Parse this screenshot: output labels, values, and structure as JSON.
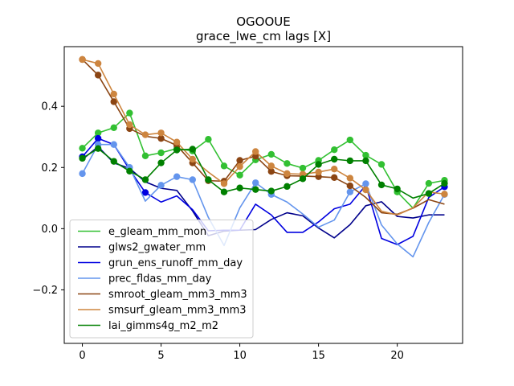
{
  "chart_data": {
    "type": "line",
    "title": "OGOOUE",
    "subtitle": "grace_lwe_cm lags [X]",
    "xlabel": "",
    "ylabel": "",
    "xlim": [
      -1.15,
      24.15
    ],
    "ylim": [
      -0.375,
      0.595
    ],
    "xticks": [
      0,
      5,
      10,
      15,
      20
    ],
    "yticks": [
      -0.2,
      0.0,
      0.2,
      0.4
    ],
    "ytick_labels": [
      "−0.2",
      "0.0",
      "0.2",
      "0.4"
    ],
    "grid": false,
    "legend_position": "lower-left",
    "x": [
      0,
      1,
      2,
      3,
      4,
      5,
      6,
      7,
      8,
      9,
      10,
      11,
      12,
      13,
      14,
      15,
      16,
      17,
      18,
      19,
      20,
      21,
      22,
      23
    ],
    "series": [
      {
        "name": "e_gleam_mm_mon",
        "color": "#32c032",
        "values": [
          0.263,
          0.313,
          0.33,
          0.378,
          0.238,
          0.248,
          0.262,
          0.254,
          0.292,
          0.205,
          0.175,
          0.225,
          0.243,
          0.213,
          0.198,
          0.223,
          0.258,
          0.29,
          0.24,
          0.21,
          0.12,
          0.067,
          0.148,
          0.158
        ],
        "markers": [
          0,
          1,
          2,
          3,
          4,
          5,
          6,
          7,
          8,
          9,
          10,
          11,
          12,
          13,
          14,
          15,
          16,
          17,
          18,
          19,
          20,
          22,
          23
        ]
      },
      {
        "name": "glws2_gwater_mm",
        "color": "#00008b",
        "values": [
          0.226,
          0.268,
          0.215,
          0.197,
          0.153,
          0.132,
          0.125,
          0.058,
          -0.023,
          -0.008,
          -0.005,
          -0.003,
          0.03,
          0.052,
          0.042,
          0.002,
          -0.03,
          0.013,
          0.075,
          0.088,
          0.04,
          0.035,
          0.045,
          0.045
        ],
        "markers": []
      },
      {
        "name": "grun_ens_runoff_mm_day",
        "color": "#0000e0",
        "values": [
          0.235,
          0.295,
          0.275,
          0.193,
          0.118,
          0.087,
          0.107,
          0.062,
          -0.007,
          -0.005,
          -0.005,
          0.08,
          0.045,
          -0.012,
          -0.012,
          0.022,
          0.065,
          0.08,
          0.142,
          -0.032,
          -0.052,
          -0.025,
          0.102,
          0.137
        ],
        "markers": [
          0,
          1,
          4,
          23
        ]
      },
      {
        "name": "prec_fldas_mm_day",
        "color": "#6495ed",
        "values": [
          0.18,
          0.275,
          0.275,
          0.2,
          0.09,
          0.142,
          0.17,
          0.16,
          0.037,
          -0.055,
          0.068,
          0.15,
          0.112,
          0.087,
          0.048,
          0.005,
          0.028,
          0.12,
          0.147,
          0.012,
          -0.05,
          -0.092,
          0.02,
          0.112
        ],
        "markers": [
          0,
          1,
          2,
          3,
          5,
          6,
          7,
          11,
          12,
          17,
          18,
          23
        ]
      },
      {
        "name": "smroot_gleam_mm3_mm3",
        "color": "#8b4513",
        "values": [
          0.553,
          0.502,
          0.415,
          0.327,
          0.302,
          0.295,
          0.272,
          0.215,
          0.157,
          0.155,
          0.223,
          0.237,
          0.187,
          0.173,
          0.172,
          0.17,
          0.167,
          0.14,
          0.102,
          0.052,
          0.047,
          0.067,
          0.095,
          0.08
        ],
        "markers": [
          0,
          1,
          2,
          3,
          5,
          6,
          7,
          8,
          9,
          10,
          11,
          12,
          13,
          14,
          15,
          16,
          17
        ]
      },
      {
        "name": "smsurf_gleam_mm3_mm3",
        "color": "#cd853f",
        "values": [
          0.553,
          0.54,
          0.44,
          0.34,
          0.307,
          0.313,
          0.283,
          0.227,
          0.185,
          0.147,
          0.203,
          0.252,
          0.205,
          0.18,
          0.178,
          0.185,
          0.195,
          0.165,
          0.127,
          0.057,
          0.045,
          0.068,
          0.12,
          0.113
        ],
        "markers": [
          0,
          1,
          2,
          3,
          4,
          5,
          6,
          7,
          9,
          10,
          11,
          12,
          13,
          14,
          15,
          16,
          17,
          18,
          23
        ]
      },
      {
        "name": "lai_gimms4g_m2_m2",
        "color": "#008000",
        "values": [
          0.23,
          0.262,
          0.22,
          0.188,
          0.16,
          0.215,
          0.257,
          0.26,
          0.16,
          0.12,
          0.133,
          0.128,
          0.123,
          0.138,
          0.163,
          0.21,
          0.227,
          0.222,
          0.222,
          0.143,
          0.13,
          0.1,
          0.115,
          0.148
        ],
        "markers": [
          0,
          1,
          2,
          3,
          4,
          5,
          6,
          7,
          8,
          9,
          10,
          11,
          12,
          13,
          14,
          15,
          16,
          17,
          18,
          19,
          20,
          22,
          23
        ]
      }
    ]
  }
}
